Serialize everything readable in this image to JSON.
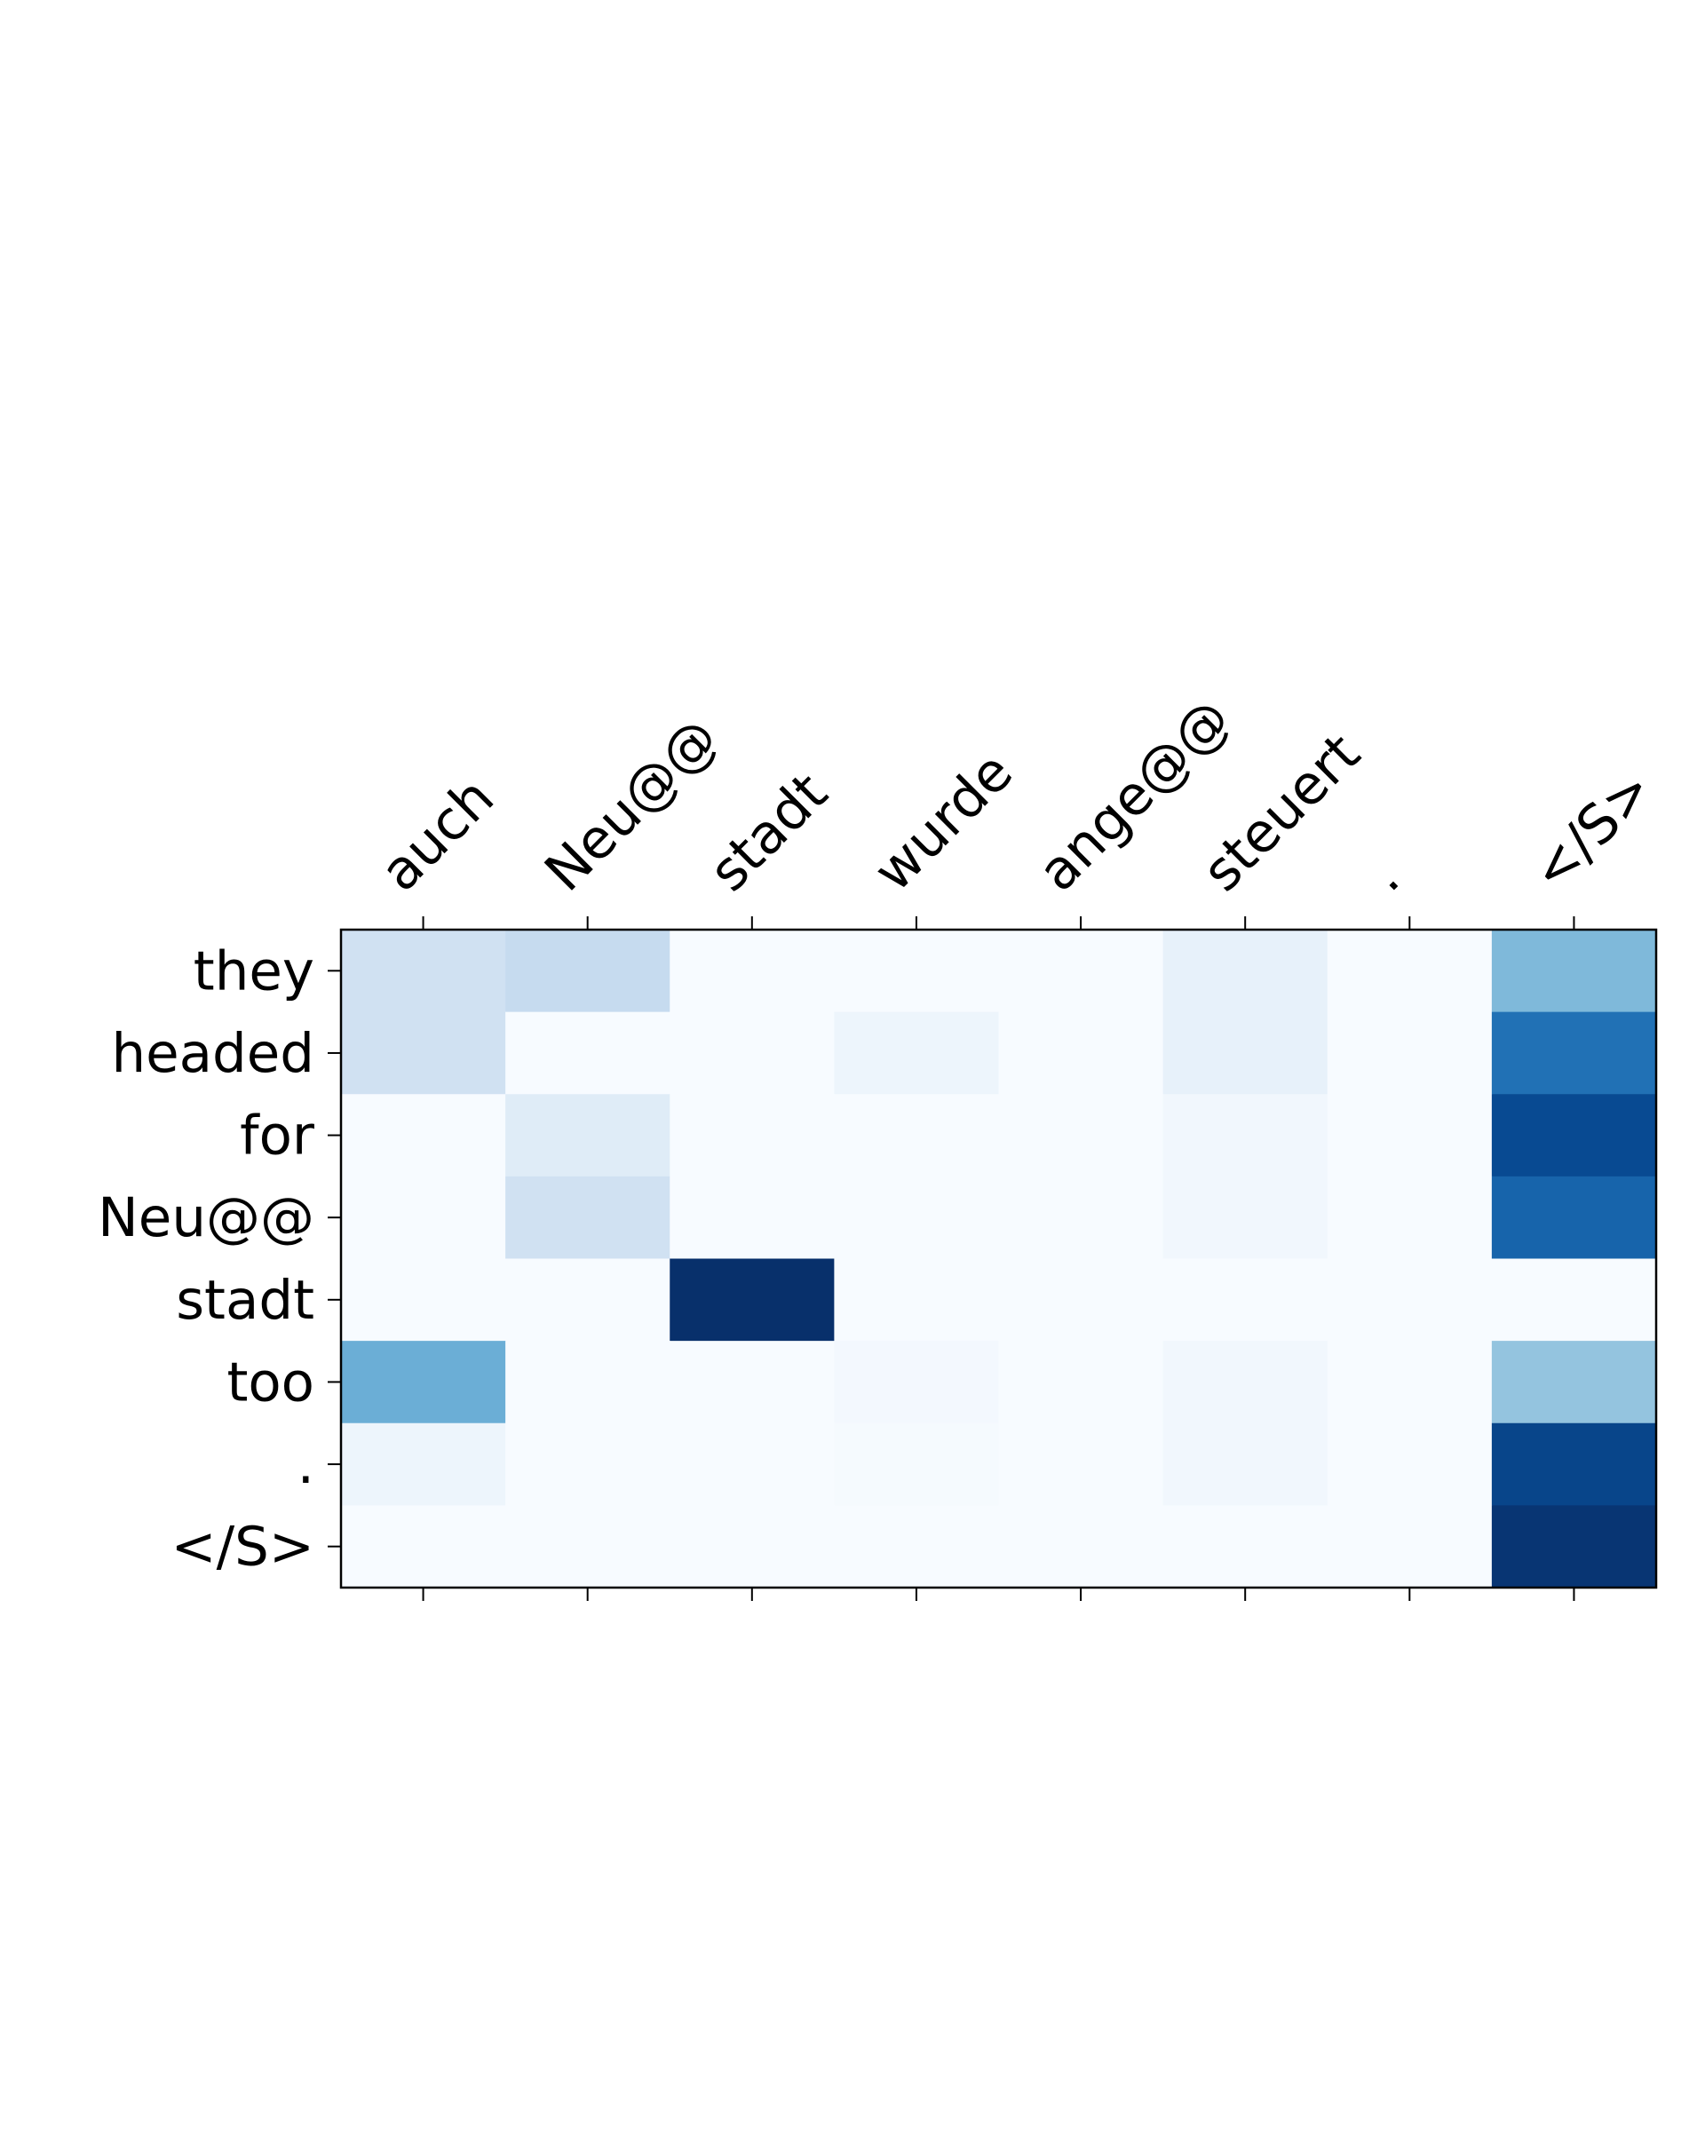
{
  "chart_data": {
    "type": "heatmap",
    "x": [
      "auch",
      "Neu@@",
      "stadt",
      "wurde",
      "ange@@",
      "steuert",
      ".",
      "</S>"
    ],
    "y": [
      "they",
      "headed",
      "for",
      "Neu@@",
      "stadt",
      "too",
      ".",
      "</S>"
    ],
    "values": [
      [
        0.2,
        0.25,
        0,
        0,
        0,
        0.08,
        0,
        0.45
      ],
      [
        0.2,
        0,
        0,
        0.05,
        0,
        0.08,
        0,
        0.75
      ],
      [
        0,
        0.12,
        0,
        0,
        0,
        0.03,
        0,
        0.9
      ],
      [
        0,
        0.2,
        0,
        0,
        0,
        0.03,
        0,
        0.8
      ],
      [
        0,
        0,
        1.0,
        0,
        0,
        0,
        0,
        0
      ],
      [
        0.5,
        0,
        0,
        0.02,
        0,
        0.03,
        0,
        0.4
      ],
      [
        0.05,
        0,
        0,
        0.01,
        0,
        0.03,
        0,
        0.92
      ],
      [
        0,
        0,
        0,
        0,
        0,
        0,
        0,
        0.98
      ]
    ],
    "vlim": [
      0,
      1
    ],
    "colormap": [
      "#f7fbff",
      "#deebf7",
      "#c6dbef",
      "#9ecae1",
      "#6baed6",
      "#4292c6",
      "#2171b5",
      "#08519c",
      "#08306b"
    ]
  }
}
